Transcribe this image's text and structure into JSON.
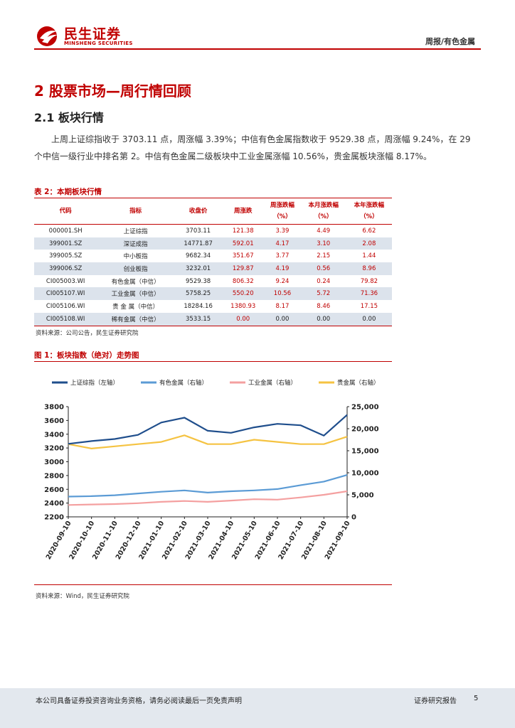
{
  "header": {
    "logo_cn": "民生证券",
    "logo_en": "MINSHENG SECURITIES",
    "right": "周报/有色金属",
    "colors": {
      "brand": "#c00000"
    }
  },
  "section": {
    "h1": "2 股票市场—周行情回顾",
    "h2": "2.1 板块行情",
    "paragraph": "上周上证综指收于 3703.11 点，周涨幅 3.39%；中信有色金属指数收于 9529.38 点，周涨幅 9.24%，在 29 个中信一级行业中排名第 2。中信有色金属二级板块中工业金属涨幅 10.56%，贵金属板块涨幅 8.17%。"
  },
  "table": {
    "caption": "表 2：本期板块行情",
    "headers": [
      "代码",
      "指标",
      "收盘价",
      "周涨跌",
      "周涨跌幅\n（%）",
      "本月涨跌幅\n（%）",
      "本年涨跌幅\n（%）"
    ],
    "rows": [
      [
        "000001.SH",
        "上证综指",
        "3703.11",
        "121.38",
        "3.39",
        "4.49",
        "6.62"
      ],
      [
        "399001.SZ",
        "深证成指",
        "14771.87",
        "592.01",
        "4.17",
        "3.10",
        "2.08"
      ],
      [
        "399005.SZ",
        "中小板指",
        "9682.34",
        "351.67",
        "3.77",
        "2.15",
        "1.44"
      ],
      [
        "399006.SZ",
        "创业板指",
        "3232.01",
        "129.87",
        "4.19",
        "0.56",
        "8.96"
      ],
      [
        "CI005003.WI",
        "有色金属（中信）",
        "9529.38",
        "806.32",
        "9.24",
        "0.24",
        "79.82"
      ],
      [
        "CI005107.WI",
        "工业金属（中信）",
        "5758.25",
        "550.20",
        "10.56",
        "5.72",
        "71.36"
      ],
      [
        "CI005106.WI",
        "贵 金 属（中信）",
        "18284.16",
        "1380.93",
        "8.17",
        "8.46",
        "17.15"
      ],
      [
        "CI005108.WI",
        "稀有金属（中信）",
        "3533.15",
        "0.00",
        "0.00",
        "0.00",
        "0.00"
      ]
    ],
    "source": "资料来源：公司公告，民生证券研究院"
  },
  "figure": {
    "caption": "图 1：板块指数（绝对）走势图",
    "source": "资料来源：Wind，民生证券研究院"
  },
  "chart_data": {
    "type": "line",
    "x": [
      "2020-09-10",
      "2020-10-10",
      "2020-11-10",
      "2020-12-10",
      "2021-01-10",
      "2021-02-10",
      "2021-03-10",
      "2021-04-10",
      "2021-05-10",
      "2021-06-10",
      "2021-07-10",
      "2021-08-10",
      "2021-09-10"
    ],
    "left_axis": {
      "ylim": [
        2200,
        3800
      ],
      "ticks": [
        "2200",
        "2400",
        "2600",
        "2800",
        "3000",
        "3200",
        "3400",
        "3600",
        "3800"
      ]
    },
    "right_axis": {
      "ylim": [
        0,
        25000
      ],
      "ticks": [
        "0",
        "5,000",
        "10,000",
        "15,000",
        "20,000",
        "25,000"
      ]
    },
    "series": [
      {
        "name": "上证综指（左轴）",
        "axis": "left",
        "color": "#1f4e8c",
        "values": [
          3260,
          3300,
          3330,
          3390,
          3570,
          3640,
          3450,
          3420,
          3500,
          3550,
          3530,
          3380,
          3680
        ]
      },
      {
        "name": "有色金属（右轴）",
        "axis": "right",
        "color": "#5b9bd5",
        "values": [
          4600,
          4700,
          4900,
          5300,
          5700,
          6000,
          5500,
          5800,
          6000,
          6300,
          7200,
          8000,
          9500
        ]
      },
      {
        "name": "工业金属（右轴）",
        "axis": "right",
        "color": "#f4a0a0",
        "values": [
          2700,
          2800,
          2900,
          3100,
          3400,
          3600,
          3400,
          3700,
          4000,
          3900,
          4400,
          5000,
          5800
        ]
      },
      {
        "name": "贵金属（右轴）",
        "axis": "right",
        "color": "#f5c342",
        "values": [
          16500,
          15500,
          16000,
          16500,
          17000,
          18500,
          16500,
          16500,
          17500,
          17000,
          16500,
          16500,
          18200
        ]
      }
    ]
  },
  "footer": {
    "disclaimer": "本公司具备证券投资咨询业务资格，请务必阅读最后一页免责声明",
    "report_type": "证券研究报告",
    "page": "5"
  }
}
